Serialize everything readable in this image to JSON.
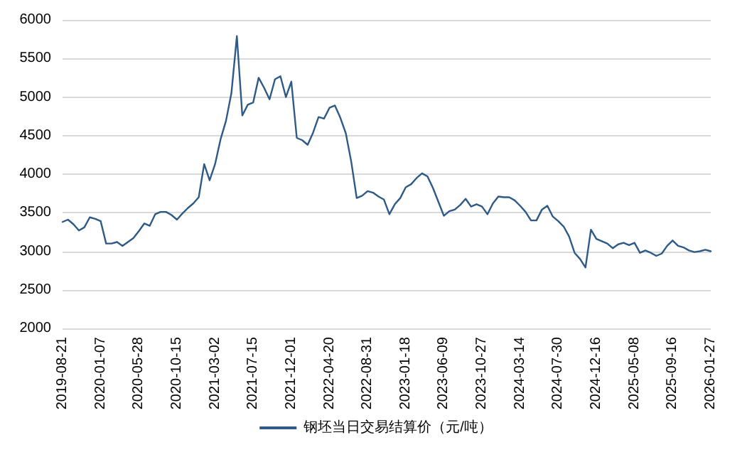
{
  "chart_data": {
    "type": "line",
    "categories": [
      "2019-08-21",
      null,
      null,
      null,
      null,
      null,
      null,
      "2020-01-07",
      null,
      null,
      null,
      null,
      null,
      null,
      "2020-05-28",
      null,
      null,
      null,
      null,
      null,
      null,
      "2020-10-15",
      null,
      null,
      null,
      null,
      null,
      null,
      "2021-03-02",
      null,
      null,
      null,
      null,
      null,
      null,
      "2021-07-15",
      null,
      null,
      null,
      null,
      null,
      null,
      "2021-12-01",
      null,
      null,
      null,
      null,
      null,
      null,
      "2022-04-20",
      null,
      null,
      null,
      null,
      null,
      null,
      "2022-08-31",
      null,
      null,
      null,
      null,
      null,
      null,
      "2023-01-18",
      null,
      null,
      null,
      null,
      null,
      null,
      "2023-06-09",
      null,
      null,
      null,
      null,
      null,
      null,
      "2023-10-27",
      null,
      null,
      null,
      null,
      null,
      null,
      "2024-03-14",
      null,
      null,
      null,
      null,
      null,
      null,
      "2024-07-30",
      null,
      null,
      null,
      null,
      null,
      null,
      "2024-12-16",
      null,
      null,
      null,
      null,
      null,
      null,
      "2025-05-08",
      null,
      null,
      null,
      null,
      null,
      null,
      "2025-09-16",
      null,
      null,
      null,
      null,
      null,
      null,
      "2026-01-27"
    ],
    "series": [
      {
        "name": "钢坯当日交易结算价（元/吨）",
        "color": "#2e5a87",
        "values": [
          3380,
          3410,
          3350,
          3270,
          3310,
          3440,
          3420,
          3390,
          3100,
          3100,
          3120,
          3070,
          3120,
          3170,
          3260,
          3360,
          3330,
          3480,
          3510,
          3510,
          3470,
          3410,
          3490,
          3560,
          3620,
          3700,
          4130,
          3920,
          4130,
          4450,
          4690,
          5050,
          5790,
          4760,
          4900,
          4930,
          5250,
          5120,
          4970,
          5230,
          5270,
          5000,
          5200,
          4470,
          4440,
          4380,
          4540,
          4740,
          4720,
          4860,
          4890,
          4730,
          4530,
          4160,
          3690,
          3720,
          3780,
          3760,
          3710,
          3670,
          3480,
          3610,
          3690,
          3830,
          3870,
          3950,
          4010,
          3970,
          3820,
          3640,
          3460,
          3520,
          3540,
          3600,
          3680,
          3580,
          3610,
          3580,
          3480,
          3620,
          3710,
          3700,
          3700,
          3660,
          3590,
          3510,
          3400,
          3400,
          3540,
          3590,
          3450,
          3390,
          3320,
          3190,
          2980,
          2900,
          2790,
          3280,
          3160,
          3130,
          3100,
          3040,
          3090,
          3110,
          3080,
          3110,
          2980,
          3010,
          2980,
          2940,
          2970,
          3070,
          3140,
          3070,
          3050,
          3010,
          2990,
          3000,
          3020,
          3000
        ]
      }
    ],
    "ylim": [
      2000,
      6000
    ],
    "yticks": [
      2000,
      2500,
      3000,
      3500,
      4000,
      4500,
      5000,
      5500,
      6000
    ],
    "grid": "y",
    "legend": "bottom",
    "marker": "none",
    "line_style": "solid"
  }
}
